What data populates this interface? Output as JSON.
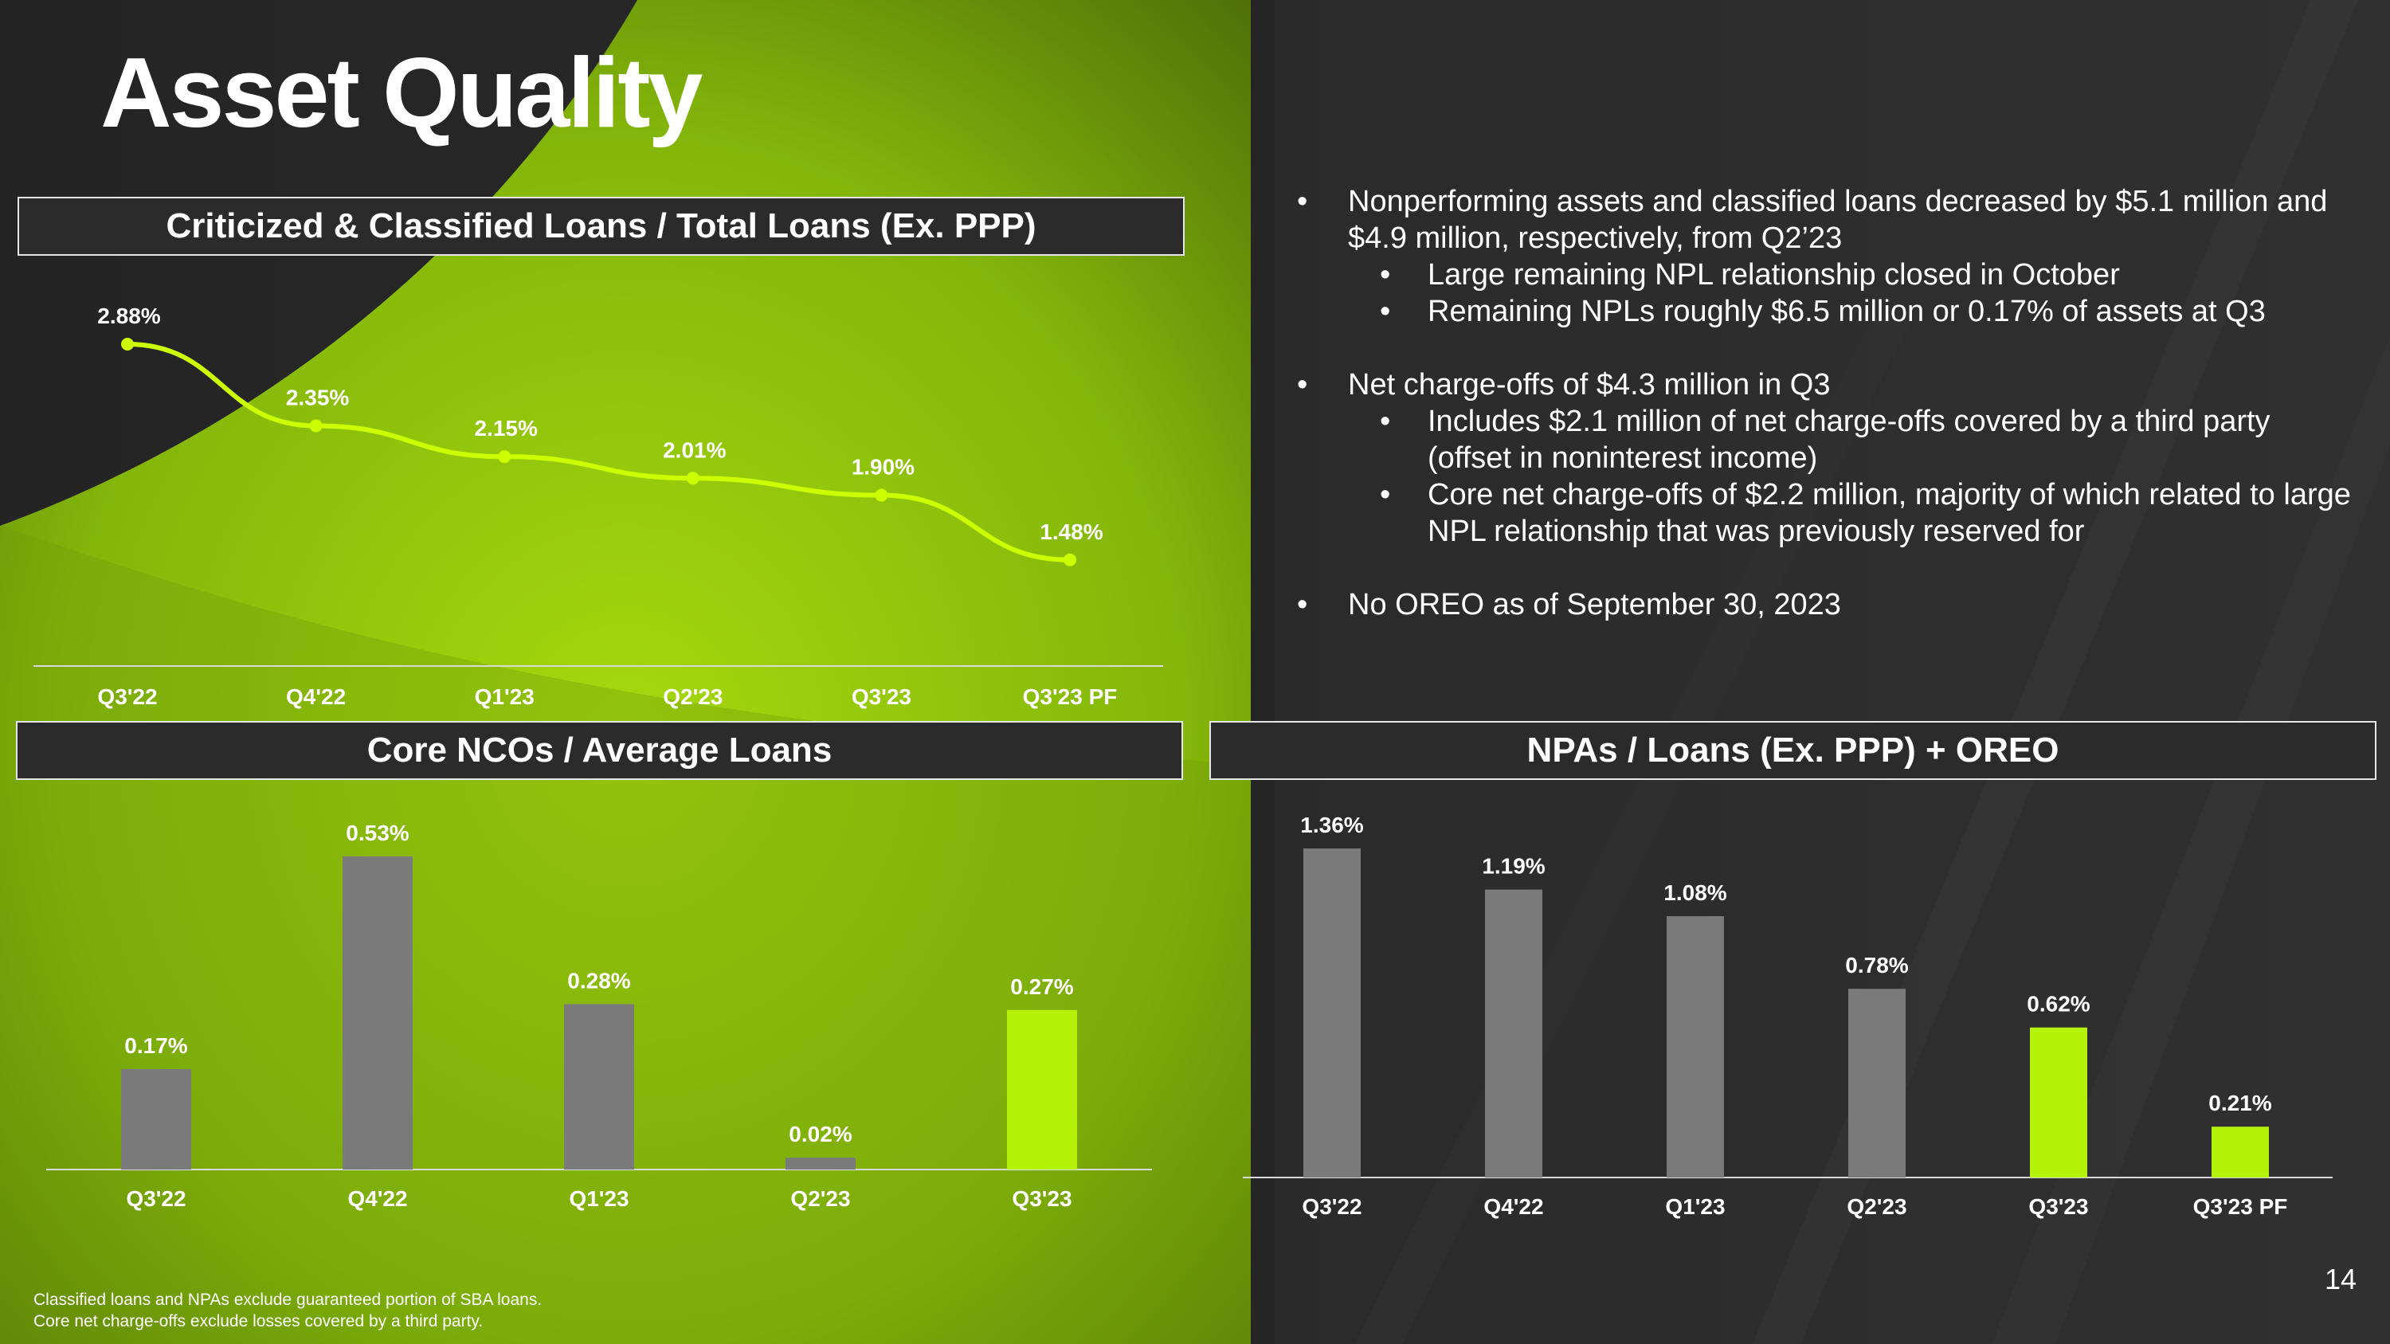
{
  "title": "Asset Quality",
  "page_number": "14",
  "colors": {
    "accent": "#b4f20a",
    "bar_gray": "#7a7a7a",
    "background": "#262626",
    "line": "#ccff00"
  },
  "panels": {
    "top_left": "Criticized & Classified Loans / Total Loans (Ex. PPP)",
    "bottom_left": "Core NCOs / Average Loans",
    "bottom_right": "NPAs / Loans (Ex. PPP) + OREO"
  },
  "bullets": [
    {
      "text": "Nonperforming assets and classified loans decreased by $5.1 million and $4.9 million, respectively, from Q2’23",
      "sub": [
        "Large remaining NPL relationship closed in October",
        "Remaining NPLs roughly $6.5 million or 0.17% of assets at Q3"
      ]
    },
    {
      "text": "Net charge-offs of $4.3 million in Q3",
      "sub": [
        "Includes $2.1 million of net charge-offs covered by a third party (offset in noninterest income)",
        "Core net charge-offs of $2.2 million, majority of which related to large NPL relationship that was previously reserved for"
      ]
    },
    {
      "text": "No OREO as of September 30, 2023",
      "sub": []
    }
  ],
  "bullet_symbol": "•",
  "footnotes": [
    "Classified loans and NPAs exclude guaranteed portion of SBA loans.",
    "Core net charge-offs exclude losses covered by a third party."
  ],
  "chart_data": [
    {
      "type": "line",
      "title": "Criticized & Classified Loans / Total Loans (Ex. PPP)",
      "categories": [
        "Q3'22",
        "Q4'22",
        "Q1'23",
        "Q2'23",
        "Q3'23",
        "Q3'23 PF"
      ],
      "values": [
        2.88,
        2.35,
        2.15,
        2.01,
        1.9,
        1.48
      ],
      "labels": [
        "2.88%",
        "2.35%",
        "2.15%",
        "2.01%",
        "1.90%",
        "1.48%"
      ],
      "ylim": [
        0,
        3.1
      ],
      "grid": false,
      "legend": "none"
    },
    {
      "type": "bar",
      "title": "Core NCOs / Average Loans",
      "categories": [
        "Q3'22",
        "Q4'22",
        "Q1'23",
        "Q2'23",
        "Q3'23"
      ],
      "values": [
        0.17,
        0.53,
        0.28,
        0.02,
        0.27
      ],
      "labels": [
        "0.17%",
        "0.53%",
        "0.28%",
        "0.02%",
        "0.27%"
      ],
      "highlight": [
        false,
        false,
        false,
        false,
        true
      ],
      "ylim": [
        0,
        0.53
      ],
      "grid": false,
      "legend": "none"
    },
    {
      "type": "bar",
      "title": "NPAs / Loans (Ex. PPP) + OREO",
      "categories": [
        "Q3'22",
        "Q4'22",
        "Q1'23",
        "Q2'23",
        "Q3'23",
        "Q3'23 PF"
      ],
      "values": [
        1.36,
        1.19,
        1.08,
        0.78,
        0.62,
        0.21
      ],
      "labels": [
        "1.36%",
        "1.19%",
        "1.08%",
        "0.78%",
        "0.62%",
        "0.21%"
      ],
      "highlight": [
        false,
        false,
        false,
        false,
        true,
        true
      ],
      "ylim": [
        0,
        1.36
      ],
      "grid": false,
      "legend": "none"
    }
  ]
}
